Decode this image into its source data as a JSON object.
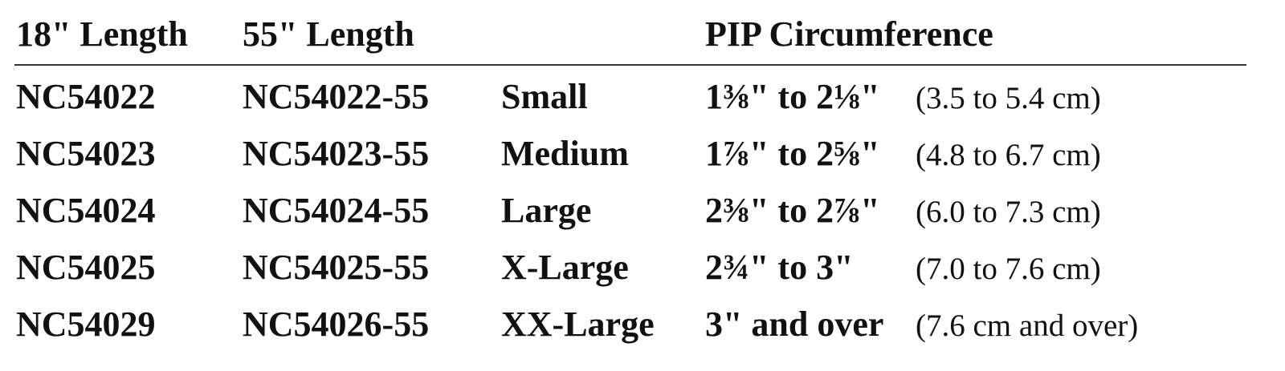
{
  "table": {
    "header": [
      "18\" Length",
      "55\" Length",
      "PIP Circumference"
    ],
    "rows": [
      [
        "NC54022",
        "NC54022-55",
        "Small",
        "1⅜\" to 2⅛\"",
        "(3.5 to 5.4 cm)"
      ],
      [
        "NC54023",
        "NC54023-55",
        "Medium",
        "1⅞\" to 2⅝\"",
        "(4.8 to 6.7 cm)"
      ],
      [
        "NC54024",
        "NC54024-55",
        "Large",
        "2⅜\" to 2⅞\"",
        "(6.0 to 7.3 cm)"
      ],
      [
        "NC54025",
        "NC54025-55",
        "X-Large",
        "2¾\" to 3\"",
        "(7.0 to 7.6 cm)"
      ],
      [
        "NC54029",
        "NC54026-55",
        "XX-Large",
        "3\" and over",
        "(7.6 cm and over)"
      ]
    ]
  }
}
